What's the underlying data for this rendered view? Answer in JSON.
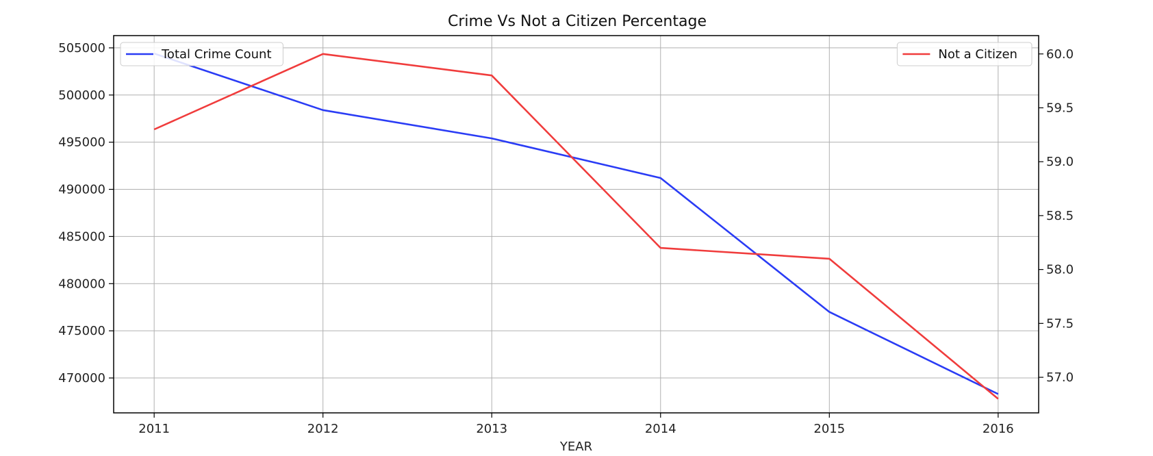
{
  "chart_data": {
    "type": "line",
    "title": "Crime Vs Not a Citizen Percentage",
    "xlabel": "YEAR",
    "x": [
      2011,
      2012,
      2013,
      2014,
      2015,
      2016
    ],
    "x_ticks": [
      "2011",
      "2012",
      "2013",
      "2014",
      "2015",
      "2016"
    ],
    "xlim": [
      2010.76,
      2016.24
    ],
    "grid": true,
    "left_axis": {
      "ylim": [
        466300,
        506300
      ],
      "ticks": [
        470000,
        475000,
        480000,
        485000,
        490000,
        495000,
        500000,
        505000
      ],
      "tick_labels": [
        "470000",
        "475000",
        "480000",
        "485000",
        "490000",
        "495000",
        "500000",
        "505000"
      ]
    },
    "right_axis": {
      "ylim": [
        56.67,
        60.17
      ],
      "ticks": [
        57.0,
        57.5,
        58.0,
        58.5,
        59.0,
        59.5,
        60.0
      ],
      "tick_labels": [
        "57.0",
        "57.5",
        "58.0",
        "58.5",
        "59.0",
        "59.5",
        "60.0"
      ]
    },
    "series": [
      {
        "name": "Total Crime Count",
        "axis": "left",
        "color": "#2a3cf5",
        "values": [
          504400,
          498400,
          495400,
          491200,
          477000,
          468300
        ],
        "legend_position": "top-left"
      },
      {
        "name": "Not a Citizen",
        "axis": "right",
        "color": "#f03c3c",
        "values": [
          59.3,
          60.0,
          59.8,
          58.2,
          58.1,
          56.8
        ],
        "legend_position": "top-right"
      }
    ]
  }
}
